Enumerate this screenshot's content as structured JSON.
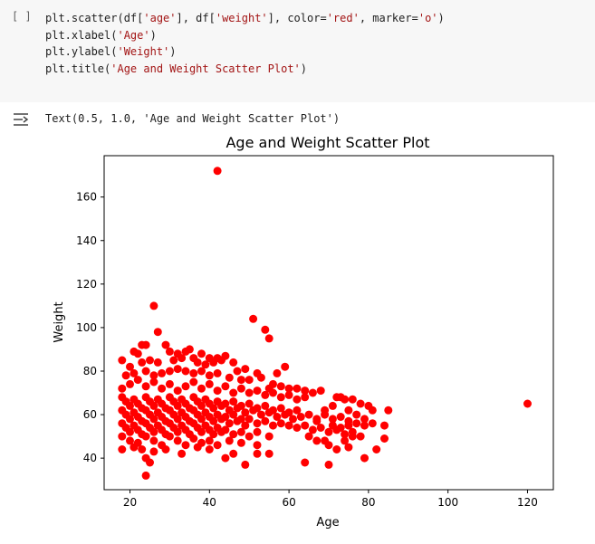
{
  "cell": {
    "run_indicator": "[ ]",
    "code_lines": [
      {
        "parts": [
          {
            "t": "plt.scatter(df["
          },
          {
            "t": "'age'",
            "c": "str"
          },
          {
            "t": "], df["
          },
          {
            "t": "'weight'",
            "c": "str"
          },
          {
            "t": "], color="
          },
          {
            "t": "'red'",
            "c": "str"
          },
          {
            "t": ", marker="
          },
          {
            "t": "'o'",
            "c": "str"
          },
          {
            "t": ")"
          }
        ]
      },
      {
        "parts": [
          {
            "t": "plt.xlabel("
          },
          {
            "t": "'Age'",
            "c": "str"
          },
          {
            "t": ")"
          }
        ]
      },
      {
        "parts": [
          {
            "t": "plt.ylabel("
          },
          {
            "t": "'Weight'",
            "c": "str"
          },
          {
            "t": ")"
          }
        ]
      },
      {
        "parts": [
          {
            "t": "plt.title("
          },
          {
            "t": "'Age and Weight Scatter Plot'",
            "c": "str"
          },
          {
            "t": ")"
          }
        ]
      }
    ]
  },
  "output": {
    "icon": "output-toggle-icon",
    "text": "Text(0.5, 1.0, 'Age and Weight Scatter Plot')"
  },
  "chart_data": {
    "type": "scatter",
    "title": "Age and Weight Scatter Plot",
    "xlabel": "Age",
    "ylabel": "Weight",
    "xlim": [
      13.5,
      126.5
    ],
    "ylim": [
      25.5,
      179
    ],
    "xticks": [
      20,
      40,
      60,
      80,
      100,
      120
    ],
    "yticks": [
      40,
      60,
      80,
      100,
      120,
      140,
      160
    ],
    "grid": false,
    "marker_color": "#ff0000",
    "points": [
      [
        42,
        172
      ],
      [
        26,
        110
      ],
      [
        51,
        104
      ],
      [
        54,
        99
      ],
      [
        55,
        95
      ],
      [
        27,
        98
      ],
      [
        24,
        92
      ],
      [
        23,
        92
      ],
      [
        29,
        92
      ],
      [
        21,
        89
      ],
      [
        22,
        88
      ],
      [
        30,
        89
      ],
      [
        34,
        89
      ],
      [
        32,
        88
      ],
      [
        35,
        90
      ],
      [
        38,
        88
      ],
      [
        36,
        86
      ],
      [
        40,
        86
      ],
      [
        42,
        86
      ],
      [
        44,
        87
      ],
      [
        18,
        85
      ],
      [
        20,
        82
      ],
      [
        23,
        84
      ],
      [
        25,
        85
      ],
      [
        27,
        84
      ],
      [
        31,
        85
      ],
      [
        33,
        86
      ],
      [
        37,
        84
      ],
      [
        39,
        83
      ],
      [
        41,
        84
      ],
      [
        43,
        85
      ],
      [
        46,
        84
      ],
      [
        47,
        80
      ],
      [
        49,
        81
      ],
      [
        52,
        79
      ],
      [
        57,
        79
      ],
      [
        59,
        82
      ],
      [
        19,
        78
      ],
      [
        21,
        79
      ],
      [
        24,
        80
      ],
      [
        26,
        78
      ],
      [
        28,
        79
      ],
      [
        30,
        80
      ],
      [
        32,
        81
      ],
      [
        34,
        80
      ],
      [
        36,
        79
      ],
      [
        38,
        80
      ],
      [
        40,
        78
      ],
      [
        42,
        79
      ],
      [
        45,
        77
      ],
      [
        48,
        76
      ],
      [
        50,
        76
      ],
      [
        53,
        77
      ],
      [
        55,
        72
      ],
      [
        56,
        74
      ],
      [
        58,
        73
      ],
      [
        60,
        72
      ],
      [
        62,
        72
      ],
      [
        64,
        71
      ],
      [
        66,
        70
      ],
      [
        68,
        71
      ],
      [
        72,
        68
      ],
      [
        74,
        67
      ],
      [
        76,
        67
      ],
      [
        78,
        65
      ],
      [
        80,
        64
      ],
      [
        18,
        72
      ],
      [
        20,
        74
      ],
      [
        22,
        76
      ],
      [
        24,
        73
      ],
      [
        26,
        75
      ],
      [
        28,
        72
      ],
      [
        30,
        74
      ],
      [
        32,
        71
      ],
      [
        34,
        73
      ],
      [
        36,
        75
      ],
      [
        38,
        72
      ],
      [
        40,
        74
      ],
      [
        42,
        71
      ],
      [
        44,
        73
      ],
      [
        46,
        70
      ],
      [
        48,
        72
      ],
      [
        50,
        70
      ],
      [
        52,
        71
      ],
      [
        54,
        69
      ],
      [
        56,
        70
      ],
      [
        58,
        68
      ],
      [
        60,
        69
      ],
      [
        62,
        67
      ],
      [
        64,
        68
      ],
      [
        18,
        68
      ],
      [
        19,
        66
      ],
      [
        20,
        64
      ],
      [
        21,
        67
      ],
      [
        22,
        65
      ],
      [
        23,
        63
      ],
      [
        24,
        68
      ],
      [
        25,
        66
      ],
      [
        26,
        64
      ],
      [
        27,
        67
      ],
      [
        28,
        65
      ],
      [
        29,
        63
      ],
      [
        30,
        68
      ],
      [
        31,
        66
      ],
      [
        32,
        64
      ],
      [
        33,
        67
      ],
      [
        34,
        65
      ],
      [
        35,
        63
      ],
      [
        36,
        68
      ],
      [
        37,
        66
      ],
      [
        38,
        64
      ],
      [
        39,
        67
      ],
      [
        40,
        65
      ],
      [
        41,
        63
      ],
      [
        42,
        66
      ],
      [
        43,
        64
      ],
      [
        44,
        65
      ],
      [
        45,
        62
      ],
      [
        46,
        66
      ],
      [
        47,
        63
      ],
      [
        48,
        64
      ],
      [
        49,
        61
      ],
      [
        50,
        65
      ],
      [
        51,
        62
      ],
      [
        52,
        63
      ],
      [
        53,
        60
      ],
      [
        54,
        64
      ],
      [
        55,
        61
      ],
      [
        56,
        62
      ],
      [
        57,
        59
      ],
      [
        58,
        63
      ],
      [
        59,
        60
      ],
      [
        60,
        61
      ],
      [
        61,
        58
      ],
      [
        62,
        62
      ],
      [
        63,
        59
      ],
      [
        65,
        60
      ],
      [
        67,
        58
      ],
      [
        69,
        60
      ],
      [
        71,
        58
      ],
      [
        73,
        59
      ],
      [
        75,
        57
      ],
      [
        77,
        56
      ],
      [
        79,
        55
      ],
      [
        18,
        62
      ],
      [
        19,
        60
      ],
      [
        20,
        58
      ],
      [
        21,
        61
      ],
      [
        22,
        59
      ],
      [
        23,
        57
      ],
      [
        24,
        62
      ],
      [
        25,
        60
      ],
      [
        26,
        58
      ],
      [
        27,
        61
      ],
      [
        28,
        59
      ],
      [
        29,
        57
      ],
      [
        30,
        62
      ],
      [
        31,
        60
      ],
      [
        32,
        58
      ],
      [
        33,
        61
      ],
      [
        34,
        59
      ],
      [
        35,
        57
      ],
      [
        36,
        62
      ],
      [
        37,
        60
      ],
      [
        38,
        58
      ],
      [
        39,
        61
      ],
      [
        40,
        59
      ],
      [
        41,
        57
      ],
      [
        42,
        60
      ],
      [
        43,
        58
      ],
      [
        44,
        59
      ],
      [
        45,
        56
      ],
      [
        46,
        60
      ],
      [
        47,
        57
      ],
      [
        48,
        58
      ],
      [
        49,
        55
      ],
      [
        50,
        58
      ],
      [
        52,
        56
      ],
      [
        54,
        57
      ],
      [
        56,
        55
      ],
      [
        58,
        56
      ],
      [
        60,
        55
      ],
      [
        62,
        54
      ],
      [
        64,
        55
      ],
      [
        66,
        53
      ],
      [
        68,
        54
      ],
      [
        70,
        52
      ],
      [
        72,
        53
      ],
      [
        74,
        51
      ],
      [
        76,
        52
      ],
      [
        78,
        50
      ],
      [
        18,
        56
      ],
      [
        19,
        54
      ],
      [
        20,
        52
      ],
      [
        21,
        55
      ],
      [
        22,
        53
      ],
      [
        23,
        51
      ],
      [
        24,
        56
      ],
      [
        25,
        54
      ],
      [
        26,
        52
      ],
      [
        27,
        55
      ],
      [
        28,
        53
      ],
      [
        29,
        51
      ],
      [
        30,
        56
      ],
      [
        31,
        54
      ],
      [
        32,
        52
      ],
      [
        33,
        55
      ],
      [
        34,
        53
      ],
      [
        35,
        51
      ],
      [
        36,
        56
      ],
      [
        37,
        54
      ],
      [
        38,
        52
      ],
      [
        39,
        55
      ],
      [
        40,
        53
      ],
      [
        41,
        51
      ],
      [
        42,
        54
      ],
      [
        43,
        52
      ],
      [
        44,
        53
      ],
      [
        46,
        51
      ],
      [
        48,
        52
      ],
      [
        50,
        50
      ],
      [
        52,
        52
      ],
      [
        55,
        50
      ],
      [
        18,
        50
      ],
      [
        20,
        48
      ],
      [
        22,
        47
      ],
      [
        24,
        50
      ],
      [
        26,
        48
      ],
      [
        28,
        46
      ],
      [
        30,
        50
      ],
      [
        32,
        48
      ],
      [
        34,
        46
      ],
      [
        36,
        49
      ],
      [
        38,
        47
      ],
      [
        40,
        48
      ],
      [
        42,
        46
      ],
      [
        45,
        48
      ],
      [
        48,
        47
      ],
      [
        52,
        46
      ],
      [
        18,
        44
      ],
      [
        21,
        45
      ],
      [
        23,
        44
      ],
      [
        26,
        43
      ],
      [
        29,
        44
      ],
      [
        33,
        42
      ],
      [
        37,
        45
      ],
      [
        40,
        44
      ],
      [
        46,
        42
      ],
      [
        52,
        42
      ],
      [
        55,
        42
      ],
      [
        24,
        40
      ],
      [
        25,
        38
      ],
      [
        24,
        32
      ],
      [
        44,
        40
      ],
      [
        49,
        37
      ],
      [
        64,
        38
      ],
      [
        70,
        37
      ],
      [
        70,
        46
      ],
      [
        72,
        44
      ],
      [
        69,
        48
      ],
      [
        75,
        45
      ],
      [
        79,
        40
      ],
      [
        82,
        44
      ],
      [
        84,
        49
      ],
      [
        84,
        55
      ],
      [
        85,
        62
      ],
      [
        81,
        62
      ],
      [
        79,
        58
      ],
      [
        81,
        56
      ],
      [
        75,
        55
      ],
      [
        76,
        50
      ],
      [
        74,
        48
      ],
      [
        73,
        54
      ],
      [
        71,
        55
      ],
      [
        67,
        48
      ],
      [
        65,
        50
      ],
      [
        67,
        57
      ],
      [
        69,
        62
      ],
      [
        71,
        64
      ],
      [
        73,
        68
      ],
      [
        75,
        62
      ],
      [
        77,
        60
      ],
      [
        120,
        65
      ]
    ]
  }
}
